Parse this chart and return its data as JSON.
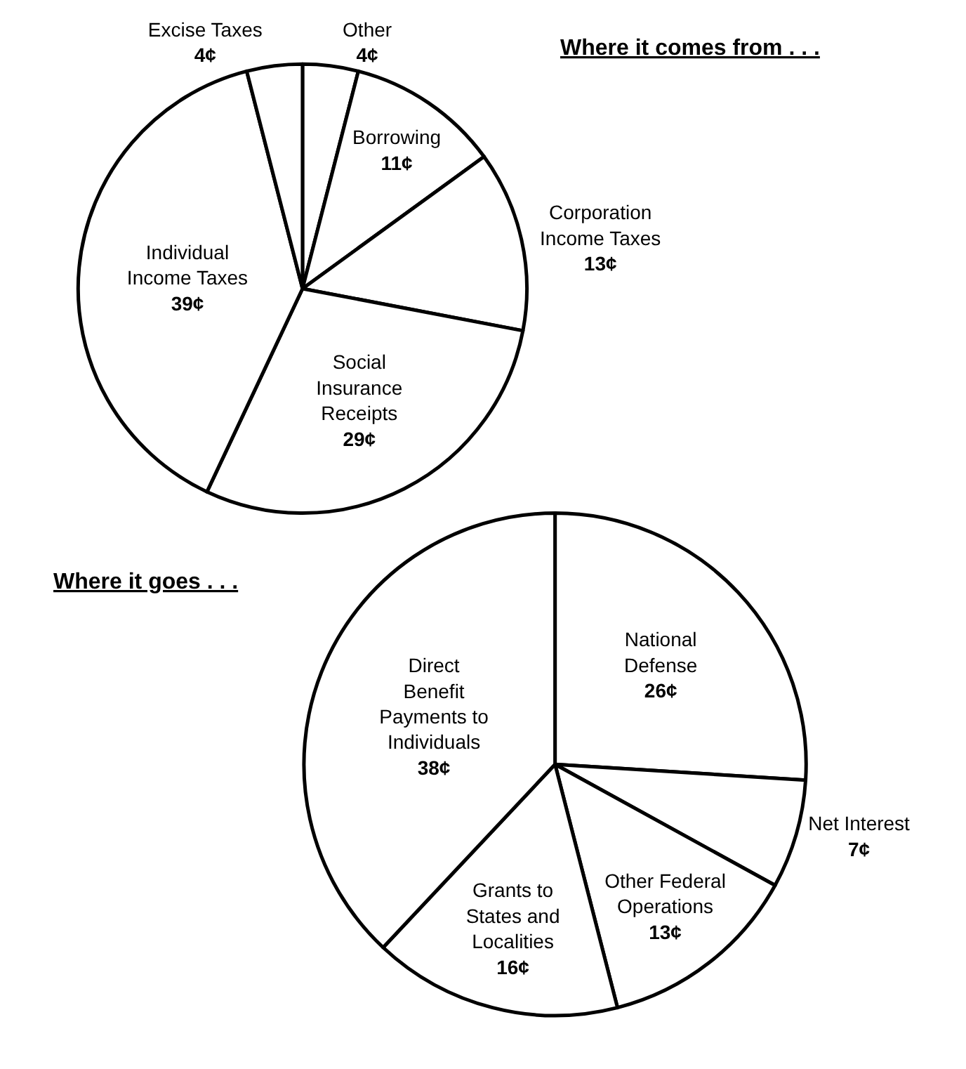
{
  "chart_data": [
    {
      "type": "pie",
      "title": "Where it comes from . . .",
      "categories": [
        "Other",
        "Borrowing",
        "Corporation Income Taxes",
        "Social Insurance Receipts",
        "Individual Income Taxes",
        "Excise Taxes"
      ],
      "values": [
        4,
        11,
        13,
        29,
        39,
        4
      ],
      "value_labels": [
        "4¢",
        "11¢",
        "13¢",
        "29¢",
        "39¢",
        "4¢"
      ],
      "colors": [
        "#ffffff",
        "#ffffff",
        "#ffffff",
        "#ffffff",
        "#ffffff",
        "#ffffff"
      ]
    },
    {
      "type": "pie",
      "title": "Where it goes . . .",
      "categories": [
        "National Defense",
        "Net Interest",
        "Other Federal Operations",
        "Grants to States and Localities",
        "Direct Benefit Payments to Individuals"
      ],
      "values": [
        26,
        7,
        13,
        16,
        38
      ],
      "value_labels": [
        "26¢",
        "7¢",
        "13¢",
        "16¢",
        "38¢"
      ],
      "colors": [
        "#ffffff",
        "#ffffff",
        "#ffffff",
        "#ffffff",
        "#ffffff"
      ]
    }
  ]
}
